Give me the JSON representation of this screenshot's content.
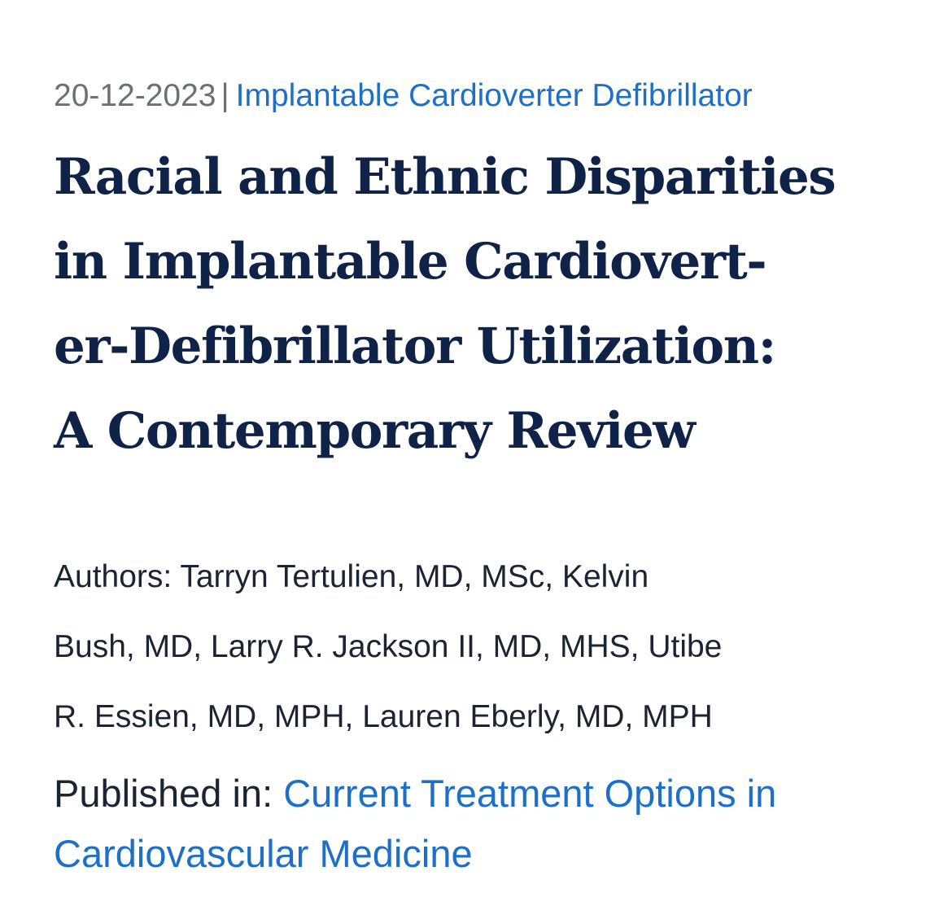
{
  "article": {
    "date": "20-12-2023",
    "separator": "|",
    "category": "Implantable Cardioverter Defibrillator",
    "title_lines": [
      "Racial and Ethnic Disparities",
      "in Implantable Cardiovert-",
      "er-Defibrillator Utilization:",
      "A Contemporary Review"
    ],
    "authors_lines": [
      "Authors: Tarryn Tertulien, MD, MSc, Kelvin",
      "Bush, MD, Larry R. Jackson II, MD, MHS, Utibe",
      "R. Essien, MD, MPH, Lauren Eberly, MD, MPH"
    ],
    "published_label": "Published in: ",
    "journal_lines": [
      "Current Treatment Options in",
      "Cardiovascular Medicine"
    ]
  },
  "colors": {
    "link": "#1d6fc7",
    "title": "#0f2247",
    "meta": "#6b6f76",
    "body_text": "#1c2333"
  }
}
